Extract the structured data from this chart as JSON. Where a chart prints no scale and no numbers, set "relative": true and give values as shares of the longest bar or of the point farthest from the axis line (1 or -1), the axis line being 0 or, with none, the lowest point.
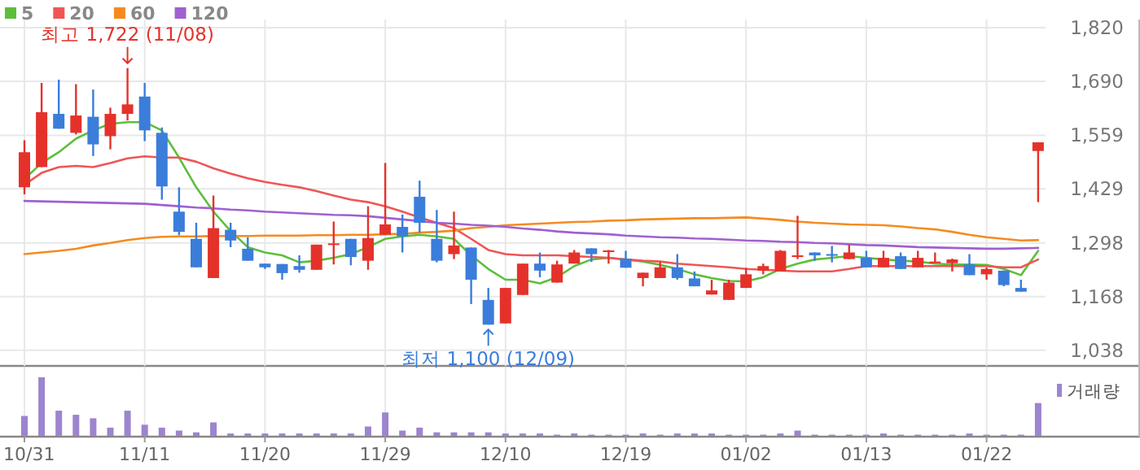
{
  "chart_data": [
    {
      "type": "candlestick",
      "ohlc": [
        [
          1433,
          1547,
          1416,
          1518
        ],
        [
          1482,
          1686,
          1482,
          1615
        ],
        [
          1611,
          1694,
          1575,
          1575
        ],
        [
          1565,
          1683,
          1561,
          1607
        ],
        [
          1604,
          1670,
          1509,
          1537
        ],
        [
          1557,
          1626,
          1525,
          1611
        ],
        [
          1611,
          1722,
          1595,
          1634
        ],
        [
          1653,
          1686,
          1545,
          1571
        ],
        [
          1565,
          1578,
          1403,
          1435
        ],
        [
          1374,
          1433,
          1317,
          1325
        ],
        [
          1308,
          1347,
          1239,
          1239
        ],
        [
          1213,
          1413,
          1213,
          1334
        ],
        [
          1330,
          1347,
          1288,
          1304
        ],
        [
          1284,
          1312,
          1255,
          1255
        ],
        [
          1248,
          1248,
          1235,
          1239
        ],
        [
          1247,
          1247,
          1209,
          1225
        ],
        [
          1242,
          1268,
          1226,
          1233
        ],
        [
          1233,
          1294,
          1233,
          1294
        ],
        [
          1295,
          1350,
          1246,
          1297
        ],
        [
          1308,
          1308,
          1244,
          1264
        ],
        [
          1255,
          1387,
          1233,
          1310
        ],
        [
          1318,
          1492,
          1318,
          1343
        ],
        [
          1337,
          1367,
          1275,
          1314
        ],
        [
          1410,
          1449,
          1323,
          1347
        ],
        [
          1308,
          1378,
          1251,
          1255
        ],
        [
          1271,
          1374,
          1259,
          1292
        ],
        [
          1287,
          1287,
          1150,
          1209
        ],
        [
          1160,
          1189,
          1100,
          1100
        ],
        [
          1103,
          1189,
          1103,
          1189
        ],
        [
          1172,
          1248,
          1172,
          1248
        ],
        [
          1248,
          1275,
          1215,
          1231
        ],
        [
          1202,
          1255,
          1202,
          1246
        ],
        [
          1248,
          1281,
          1248,
          1275
        ],
        [
          1285,
          1285,
          1252,
          1271
        ],
        [
          1278,
          1281,
          1248,
          1280
        ],
        [
          1260,
          1279,
          1238,
          1238
        ],
        [
          1213,
          1226,
          1193,
          1226
        ],
        [
          1213,
          1252,
          1213,
          1239
        ],
        [
          1239,
          1271,
          1209,
          1213
        ],
        [
          1212,
          1229,
          1193,
          1193
        ],
        [
          1173,
          1209,
          1173,
          1183
        ],
        [
          1160,
          1209,
          1160,
          1202
        ],
        [
          1189,
          1238,
          1189,
          1222
        ],
        [
          1231,
          1248,
          1222,
          1242
        ],
        [
          1229,
          1281,
          1229,
          1279
        ],
        [
          1264,
          1364,
          1259,
          1268
        ],
        [
          1275,
          1275,
          1255,
          1268
        ],
        [
          1271,
          1291,
          1251,
          1268
        ],
        [
          1259,
          1294,
          1259,
          1275
        ],
        [
          1262,
          1279,
          1239,
          1239
        ],
        [
          1239,
          1279,
          1239,
          1262
        ],
        [
          1266,
          1275,
          1235,
          1235
        ],
        [
          1239,
          1279,
          1239,
          1262
        ],
        [
          1251,
          1275,
          1251,
          1253
        ],
        [
          1249,
          1260,
          1229,
          1258
        ],
        [
          1246,
          1271,
          1220,
          1220
        ],
        [
          1222,
          1239,
          1209,
          1235
        ],
        [
          1231,
          1231,
          1193,
          1196
        ],
        [
          1189,
          1209,
          1180,
          1180
        ],
        [
          1521,
          1542,
          1397,
          1542
        ]
      ],
      "colors": [
        "#e4322b",
        "#e4322b",
        "#3b7ddb",
        "#e4322b",
        "#3b7ddb",
        "#e4322b",
        "#e4322b",
        "#3b7ddb",
        "#3b7ddb",
        "#3b7ddb",
        "#3b7ddb",
        "#e4322b",
        "#3b7ddb",
        "#3b7ddb",
        "#3b7ddb",
        "#3b7ddb",
        "#3b7ddb",
        "#e4322b",
        "#e4322b",
        "#3b7ddb",
        "#e4322b",
        "#e4322b",
        "#3b7ddb",
        "#3b7ddb",
        "#3b7ddb",
        "#e4322b",
        "#3b7ddb",
        "#3b7ddb",
        "#e4322b",
        "#e4322b",
        "#3b7ddb",
        "#e4322b",
        "#e4322b",
        "#3b7ddb",
        "#e4322b",
        "#3b7ddb",
        "#e4322b",
        "#e4322b",
        "#3b7ddb",
        "#3b7ddb",
        "#e4322b",
        "#e4322b",
        "#e4322b",
        "#e4322b",
        "#e4322b",
        "#e4322b",
        "#3b7ddb",
        "#3b7ddb",
        "#e4322b",
        "#3b7ddb",
        "#e4322b",
        "#3b7ddb",
        "#e4322b",
        "#e4322b",
        "#e4322b",
        "#3b7ddb",
        "#e4322b",
        "#3b7ddb",
        "#3b7ddb",
        "#e4322b"
      ],
      "series": [
        {
          "type": "line",
          "name": "5",
          "color": "#5cbf3c",
          "values": [
            1453,
            1492,
            1518,
            1551,
            1571,
            1587,
            1591,
            1591,
            1571,
            1505,
            1433,
            1374,
            1327,
            1288,
            1275,
            1268,
            1251,
            1255,
            1262,
            1271,
            1288,
            1308,
            1314,
            1318,
            1314,
            1308,
            1268,
            1235,
            1209,
            1209,
            1200,
            1215,
            1242,
            1258,
            1262,
            1258,
            1253,
            1245,
            1235,
            1222,
            1213,
            1206,
            1205,
            1215,
            1235,
            1248,
            1258,
            1262,
            1266,
            1262,
            1258,
            1255,
            1253,
            1248,
            1246,
            1246,
            1245,
            1235,
            1220,
            1279
          ]
        },
        {
          "type": "line",
          "name": "20",
          "color": "#f05555",
          "values": [
            1439,
            1468,
            1482,
            1485,
            1482,
            1492,
            1503,
            1508,
            1505,
            1505,
            1495,
            1479,
            1466,
            1455,
            1446,
            1439,
            1433,
            1424,
            1413,
            1403,
            1397,
            1387,
            1374,
            1360,
            1347,
            1334,
            1308,
            1281,
            1271,
            1268,
            1268,
            1268,
            1266,
            1264,
            1262,
            1258,
            1255,
            1253,
            1248,
            1245,
            1242,
            1239,
            1235,
            1233,
            1231,
            1229,
            1229,
            1229,
            1235,
            1242,
            1242,
            1242,
            1242,
            1242,
            1242,
            1242,
            1242,
            1239,
            1239,
            1258
          ]
        },
        {
          "type": "line",
          "name": "60",
          "color": "#f58b20",
          "values": [
            1271,
            1275,
            1279,
            1284,
            1292,
            1298,
            1305,
            1310,
            1313,
            1314,
            1314,
            1315,
            1315,
            1315,
            1316,
            1316,
            1316,
            1317,
            1317,
            1318,
            1318,
            1319,
            1320,
            1323,
            1325,
            1328,
            1334,
            1337,
            1341,
            1343,
            1345,
            1347,
            1349,
            1350,
            1352,
            1353,
            1355,
            1356,
            1357,
            1358,
            1358,
            1359,
            1360,
            1357,
            1354,
            1350,
            1347,
            1345,
            1343,
            1342,
            1341,
            1338,
            1334,
            1331,
            1325,
            1318,
            1312,
            1308,
            1304,
            1305
          ]
        },
        {
          "type": "line",
          "name": "120",
          "color": "#a060d0",
          "values": [
            1400,
            1399,
            1398,
            1397,
            1396,
            1395,
            1394,
            1393,
            1390,
            1387,
            1384,
            1382,
            1379,
            1377,
            1374,
            1372,
            1370,
            1368,
            1366,
            1365,
            1363,
            1359,
            1355,
            1351,
            1347,
            1345,
            1342,
            1340,
            1337,
            1333,
            1330,
            1326,
            1323,
            1321,
            1319,
            1316,
            1314,
            1312,
            1311,
            1309,
            1308,
            1306,
            1304,
            1303,
            1301,
            1300,
            1298,
            1297,
            1295,
            1293,
            1292,
            1290,
            1288,
            1287,
            1286,
            1285,
            1284,
            1284,
            1285,
            1286
          ]
        }
      ],
      "ylim": [
        1000,
        1820
      ],
      "yticks": [
        {
          "value": 1038,
          "label": "1,038"
        },
        {
          "value": 1168,
          "label": "1,168"
        },
        {
          "value": 1298,
          "label": "1,298"
        },
        {
          "value": 1429,
          "label": "1,429"
        },
        {
          "value": 1559,
          "label": "1,559"
        },
        {
          "value": 1690,
          "label": "1,690"
        },
        {
          "value": 1820,
          "label": "1,820"
        }
      ],
      "grid": true,
      "legend": "top left",
      "tick_labels": "y",
      "annotations": [
        {
          "text": "최고 1,722 (11/08)",
          "y": 1722
        },
        {
          "text": "최저 1,100 (12/09)",
          "y": 1100
        }
      ]
    },
    {
      "type": "bar",
      "relative": true,
      "categories": [
        "10/31",
        null,
        null,
        null,
        null,
        null,
        null,
        "11/11",
        null,
        null,
        null,
        null,
        null,
        null,
        "11/20",
        null,
        null,
        null,
        null,
        null,
        null,
        "11/29",
        null,
        null,
        null,
        null,
        null,
        null,
        "12/10",
        null,
        null,
        null,
        null,
        null,
        null,
        "12/19",
        null,
        null,
        null,
        null,
        null,
        null,
        "01/02",
        null,
        null,
        null,
        null,
        null,
        null,
        "01/13",
        null,
        null,
        null,
        null,
        null,
        null,
        "01/22",
        null,
        null,
        null
      ],
      "series": [
        {
          "name": "거래량",
          "color": "#9d84cf",
          "values": [
            0.34,
            1,
            0.43,
            0.36,
            0.3,
            0.14,
            0.43,
            0.19,
            0.14,
            0.09,
            0.06,
            0.23,
            0.04,
            0.04,
            0.04,
            0.04,
            0.04,
            0.04,
            0.04,
            0.04,
            0.16,
            0.4,
            0.09,
            0.14,
            0.06,
            0.06,
            0.06,
            0.06,
            0.04,
            0.04,
            0.04,
            0.02,
            0.04,
            0.02,
            0.02,
            0.02,
            0.04,
            0.02,
            0.04,
            0.04,
            0.04,
            0.02,
            0.02,
            0.02,
            0.04,
            0.09,
            0.02,
            0.02,
            0.02,
            0.02,
            0.04,
            0.02,
            0.02,
            0.02,
            0.02,
            0.04,
            0.02,
            0.02,
            0.02,
            0.56
          ]
        }
      ],
      "grid": "x",
      "legend": "top right"
    }
  ]
}
